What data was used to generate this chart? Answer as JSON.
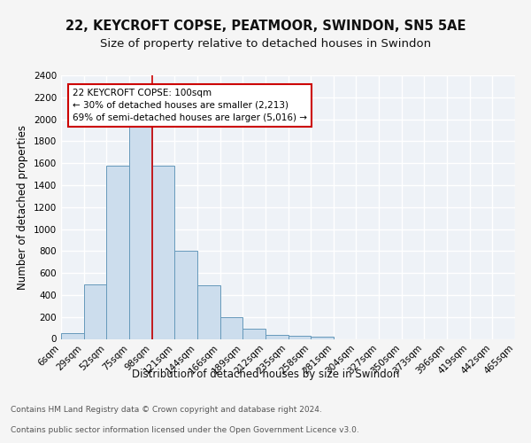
{
  "title1": "22, KEYCROFT COPSE, PEATMOOR, SWINDON, SN5 5AE",
  "title2": "Size of property relative to detached houses in Swindon",
  "xlabel": "Distribution of detached houses by size in Swindon",
  "ylabel": "Number of detached properties",
  "bar_values": [
    50,
    500,
    1580,
    1950,
    1580,
    800,
    490,
    195,
    90,
    35,
    30,
    20,
    0,
    0,
    0,
    0,
    0,
    0,
    0,
    0
  ],
  "categories": [
    "6sqm",
    "29sqm",
    "52sqm",
    "75sqm",
    "98sqm",
    "121sqm",
    "144sqm",
    "166sqm",
    "189sqm",
    "212sqm",
    "235sqm",
    "258sqm",
    "281sqm",
    "304sqm",
    "327sqm",
    "350sqm",
    "373sqm",
    "396sqm",
    "419sqm",
    "442sqm",
    "465sqm"
  ],
  "bar_color": "#ccdded",
  "bar_edge_color": "#6699bb",
  "annotation_text": "22 KEYCROFT COPSE: 100sqm\n← 30% of detached houses are smaller (2,213)\n69% of semi-detached houses are larger (5,016) →",
  "annotation_box_color": "#ffffff",
  "annotation_box_edge": "#cc0000",
  "red_line_color": "#cc0000",
  "ylim": [
    0,
    2400
  ],
  "yticks": [
    0,
    200,
    400,
    600,
    800,
    1000,
    1200,
    1400,
    1600,
    1800,
    2000,
    2200,
    2400
  ],
  "footer1": "Contains HM Land Registry data © Crown copyright and database right 2024.",
  "footer2": "Contains public sector information licensed under the Open Government Licence v3.0.",
  "bg_color": "#eef2f7",
  "grid_color": "#ffffff",
  "title_fontsize": 10.5,
  "subtitle_fontsize": 9.5,
  "axis_label_fontsize": 8.5,
  "tick_fontsize": 7.5,
  "footer_fontsize": 6.5,
  "red_line_bar_index": 4
}
